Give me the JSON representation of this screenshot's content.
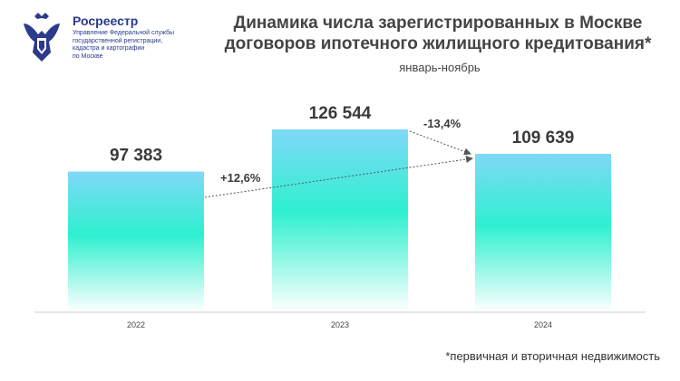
{
  "header": {
    "org_name": "Росреестр",
    "org_subtitle": "Управление Федеральной службы\nгосударственной регистрации,\nкадастра и картографии\nпо Москве"
  },
  "chart_data": {
    "type": "bar",
    "title": "Динамика числа зарегистрированных в Москве договоров ипотечного жилищного кредитования*",
    "subtitle": "январь-ноябрь",
    "categories": [
      "2022",
      "2023",
      "2024"
    ],
    "values": [
      97383,
      126544,
      109639
    ],
    "value_labels": [
      "97 383",
      "126 544",
      "109 639"
    ],
    "changes": [
      {
        "from": "2022",
        "to": "2024",
        "label": "+12,6%"
      },
      {
        "from": "2023",
        "to": "2024",
        "label": "-13,4%"
      }
    ],
    "ylim": [
      0,
      126544
    ],
    "grid": false,
    "footnote": "*первичная и вторичная недвижимость"
  },
  "colors": {
    "bar_top": "#7fd9f7",
    "bar_mid": "#2ef0cf",
    "bar_bottom": "#ffffff",
    "text": "#3a3a3a",
    "brand": "#2b3a8c"
  }
}
